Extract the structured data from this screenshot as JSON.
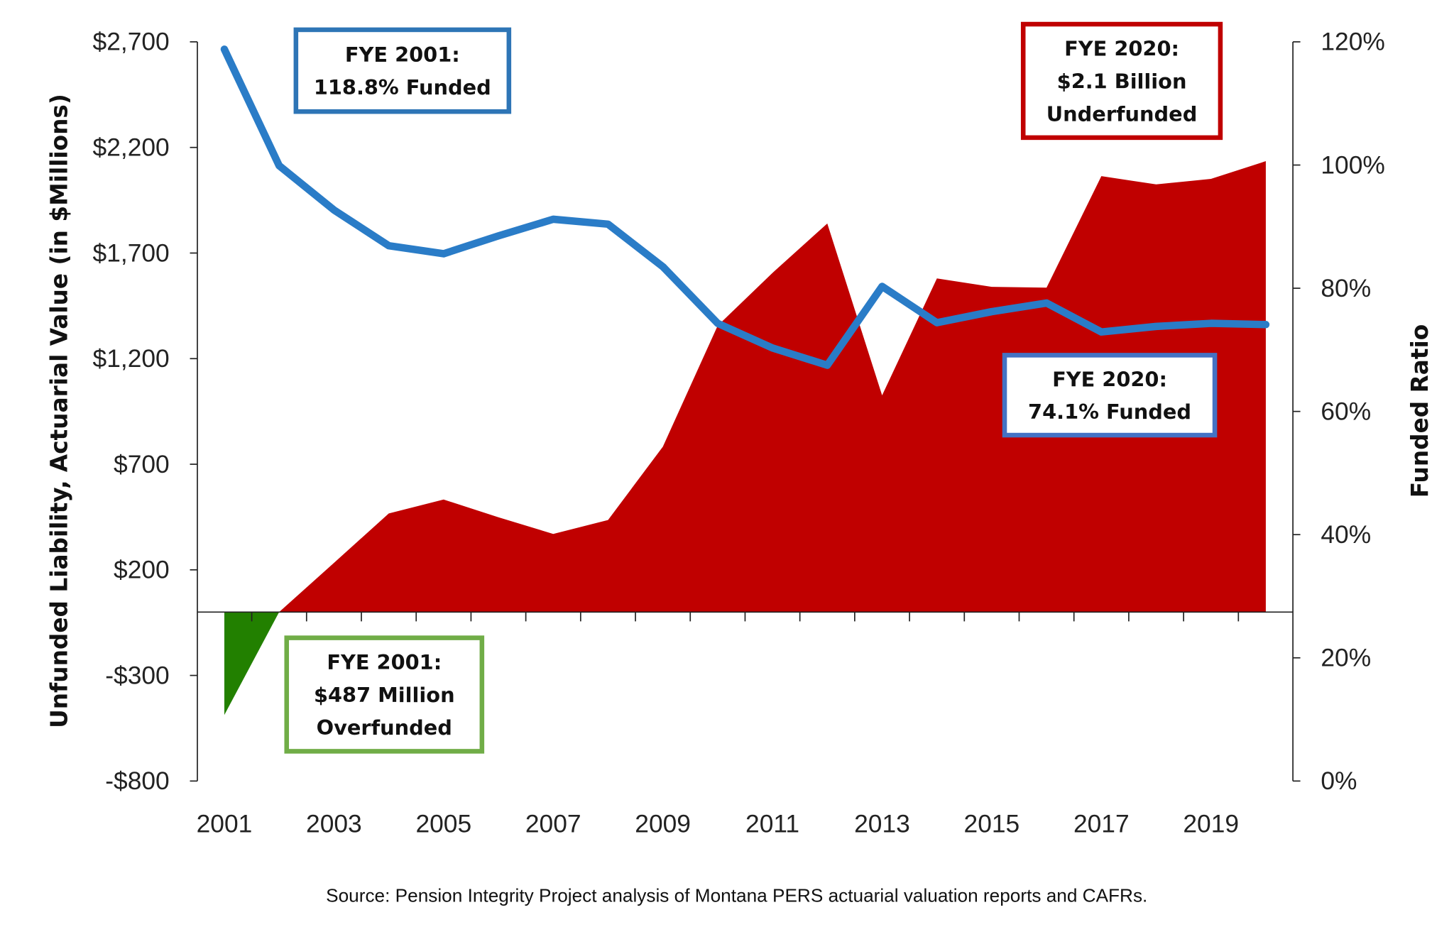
{
  "chart_data": {
    "type": "area+line",
    "source": "Source: Pension Integrity Project analysis of Montana PERS actuarial valuation reports and CAFRs.",
    "ylabel_left": "Unfunded Liability, Actuarial Value (in $Millions)",
    "ylabel_right": "Funded Ratio",
    "x": [
      2001,
      2002,
      2003,
      2004,
      2005,
      2006,
      2007,
      2008,
      2009,
      2010,
      2011,
      2012,
      2013,
      2014,
      2015,
      2016,
      2017,
      2018,
      2019,
      2020
    ],
    "x_tick_labels": [
      "2001",
      "2003",
      "2005",
      "2007",
      "2009",
      "2011",
      "2013",
      "2015",
      "2017",
      "2019"
    ],
    "ylim_left": [
      -800,
      2700
    ],
    "y_tick_labels_left": [
      "$2,700",
      "$2,200",
      "$1,700",
      "$1,200",
      "$700",
      "$200",
      "-$300",
      "-$800"
    ],
    "y_ticks_left": [
      2700,
      2200,
      1700,
      1200,
      700,
      200,
      -300,
      -800
    ],
    "ylim_right": [
      0,
      120
    ],
    "y_tick_labels_right": [
      "120%",
      "100%",
      "80%",
      "60%",
      "40%",
      "20%",
      "0%"
    ],
    "y_ticks_right": [
      120,
      100,
      80,
      60,
      40,
      20,
      0
    ],
    "series": [
      {
        "type": "area",
        "axis": "left",
        "values": [
          -487,
          0,
          233,
          467,
          533,
          449,
          370,
          436,
          783,
          1356,
          1606,
          1840,
          1026,
          1580,
          1540,
          1536,
          2064,
          2025,
          2051,
          2135
        ]
      },
      {
        "type": "line",
        "axis": "right",
        "values": [
          118.8,
          99.9,
          92.7,
          86.9,
          85.6,
          88.5,
          91.2,
          90.4,
          83.5,
          74.3,
          70.3,
          67.5,
          80.3,
          74.4,
          76.2,
          77.6,
          72.9,
          73.8,
          74.3,
          74.1
        ]
      }
    ],
    "colors": {
      "underfunded": "#c00000",
      "overfunded": "#228000",
      "funded_line": "#2a7cc7"
    },
    "grid": false,
    "annotations": [
      {
        "lines": [
          "FYE 2001:",
          "118.8% Funded"
        ],
        "border": "#2e75b6"
      },
      {
        "lines": [
          "FYE 2020:",
          "$2.1 Billion",
          "Underfunded"
        ],
        "border": "#c00000"
      },
      {
        "lines": [
          "FYE 2020:",
          "74.1% Funded"
        ],
        "border": "#4472c4"
      },
      {
        "lines": [
          "FYE 2001:",
          "$487 Million",
          "Overfunded"
        ],
        "border": "#70ad47"
      }
    ]
  }
}
